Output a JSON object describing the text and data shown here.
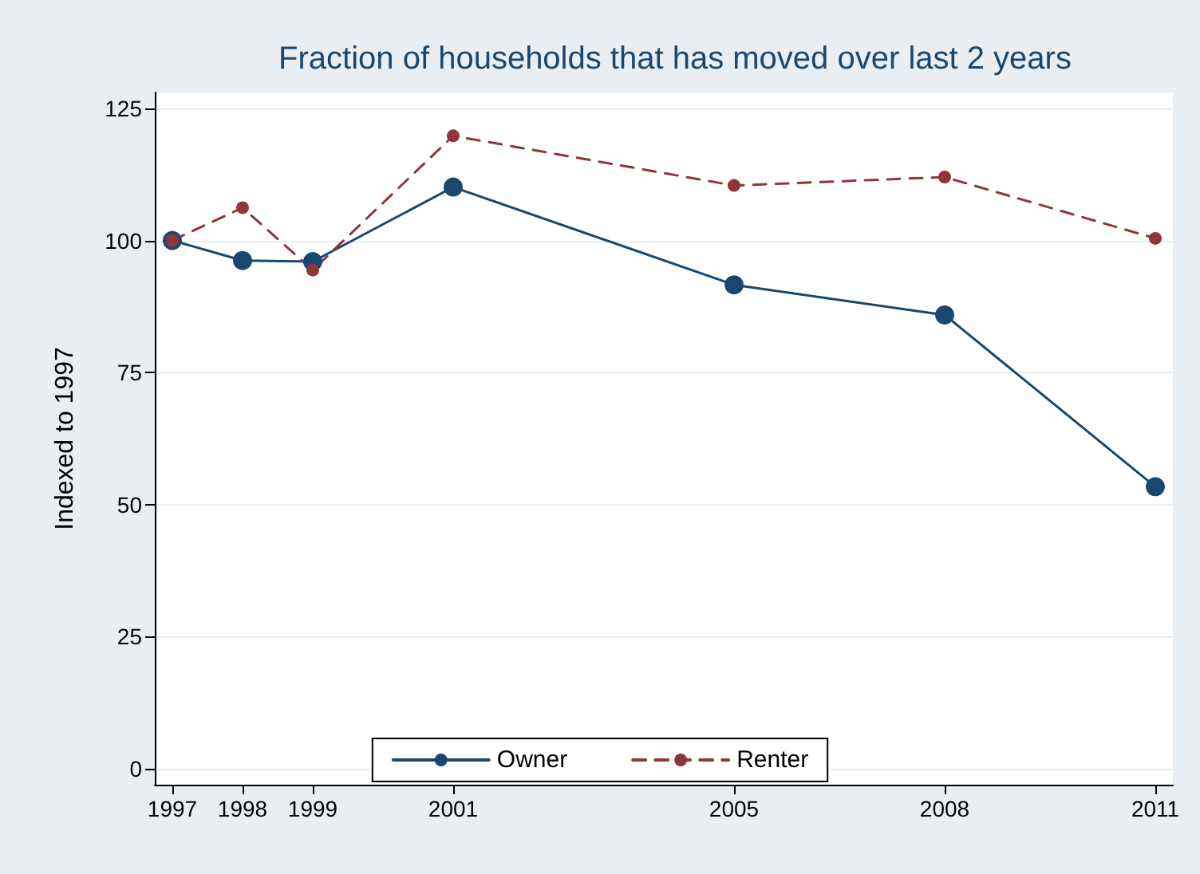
{
  "chart_data": {
    "type": "line",
    "title": "Fraction of households that has moved over last 2 years",
    "ylabel": "Indexed to 1997",
    "x": [
      1997,
      1998,
      1999,
      2001,
      2005,
      2008,
      2011
    ],
    "series": [
      {
        "name": "Owner",
        "color": "#1a476f",
        "line_style": "solid",
        "values": [
          100,
          96.2,
          96,
          110.1,
          91.6,
          85.9,
          53.4
        ]
      },
      {
        "name": "Renter",
        "color": "#90353b",
        "line_style": "dashed",
        "values": [
          100,
          106.2,
          94.4,
          119.8,
          110.4,
          112,
          100.4
        ]
      }
    ],
    "xlim": [
      1996.75,
      2011.25
    ],
    "xticks": [
      1997,
      1998,
      1999,
      2001,
      2005,
      2008,
      2011
    ],
    "ylim": [
      -3,
      128
    ],
    "yticks": [
      0,
      25,
      50,
      75,
      100,
      125
    ],
    "grid": "y",
    "legend": "bottom",
    "marker": "circle"
  }
}
